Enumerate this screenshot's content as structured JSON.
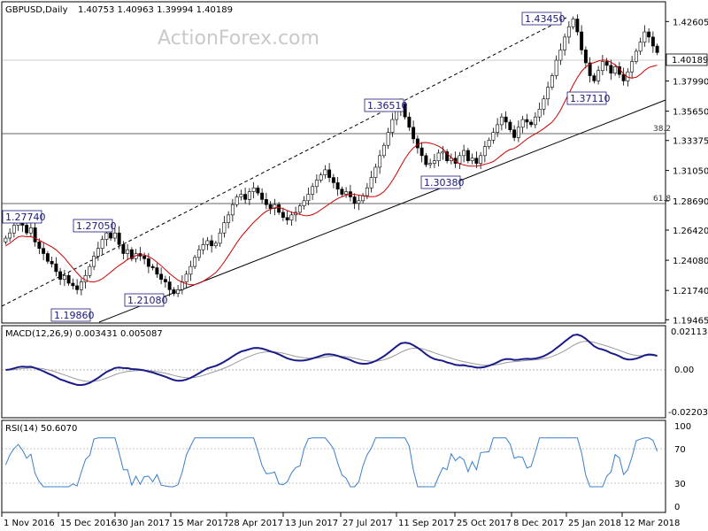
{
  "chart_data": {
    "type": "candlestick",
    "symbol": "GBPUSD,Daily",
    "ohlc_header": "1.40753 1.40963 1.39994 1.40189",
    "watermark": "ActionForex.com",
    "last_price": "1.40189",
    "price_axis_ticks": [
      1.42605,
      1.40189,
      1.3799,
      1.3565,
      1.33375,
      1.3105,
      1.2869,
      1.2642,
      1.2408,
      1.2174,
      1.19465
    ],
    "price_range": [
      1.1928,
      1.44
    ],
    "x_axis_labels": [
      "1 Nov 2016",
      "15 Dec 2016",
      "30 Jan 2017",
      "15 Mar 2017",
      "28 Apr 2017",
      "13 Jun 2017",
      "27 Jul 2017",
      "11 Sep 2017",
      "25 Oct 2017",
      "8 Dec 2017",
      "25 Jan 2018",
      "12 Mar 2018"
    ],
    "annotations": [
      {
        "label": "1.43450",
        "price": 1.4345
      },
      {
        "label": "1.36510",
        "price": 1.3651
      },
      {
        "label": "1.37110",
        "price": 1.3711
      },
      {
        "label": "1.30380",
        "price": 1.3038
      },
      {
        "label": "1.27740",
        "price": 1.2774
      },
      {
        "label": "1.27050",
        "price": 1.2705
      },
      {
        "label": "1.21080",
        "price": 1.2108
      },
      {
        "label": "1.19860",
        "price": 1.1986
      }
    ],
    "fib_levels": [
      {
        "label": "38.2",
        "price": 1.345
      },
      {
        "label": "61.8",
        "price": 1.2856
      }
    ],
    "close_series": [
      1.258,
      1.262,
      1.268,
      1.272,
      1.268,
      1.262,
      1.266,
      1.255,
      1.25,
      1.246,
      1.24,
      1.238,
      1.232,
      1.226,
      1.229,
      1.223,
      1.221,
      1.218,
      1.224,
      1.229,
      1.236,
      1.244,
      1.25,
      1.257,
      1.262,
      1.258,
      1.262,
      1.253,
      1.246,
      1.249,
      1.242,
      1.246,
      1.244,
      1.242,
      1.236,
      1.235,
      1.23,
      1.226,
      1.224,
      1.218,
      1.215,
      1.218,
      1.224,
      1.23,
      1.236,
      1.243,
      1.249,
      1.253,
      1.256,
      1.252,
      1.254,
      1.262,
      1.27,
      1.276,
      1.284,
      1.29,
      1.292,
      1.288,
      1.294,
      1.297,
      1.293,
      1.288,
      1.284,
      1.281,
      1.284,
      1.278,
      1.274,
      1.272,
      1.276,
      1.278,
      1.283,
      1.287,
      1.292,
      1.298,
      1.303,
      1.307,
      1.311,
      1.305,
      1.301,
      1.296,
      1.292,
      1.294,
      1.29,
      1.285,
      1.287,
      1.291,
      1.297,
      1.305,
      1.313,
      1.322,
      1.33,
      1.34,
      1.35,
      1.358,
      1.362,
      1.352,
      1.344,
      1.335,
      1.328,
      1.322,
      1.315,
      1.316,
      1.318,
      1.324,
      1.325,
      1.318,
      1.32,
      1.316,
      1.322,
      1.326,
      1.318,
      1.32,
      1.316,
      1.322,
      1.329,
      1.334,
      1.34,
      1.346,
      1.352,
      1.348,
      1.342,
      1.336,
      1.344,
      1.35,
      1.348,
      1.346,
      1.352,
      1.358,
      1.366,
      1.375,
      1.384,
      1.396,
      1.404,
      1.414,
      1.422,
      1.428,
      1.418,
      1.404,
      1.394,
      1.384,
      1.38,
      1.388,
      1.395,
      1.392,
      1.386,
      1.391,
      1.385,
      1.38,
      1.387,
      1.395,
      1.403,
      1.41,
      1.418,
      1.414,
      1.407,
      1.402
    ]
  }
}
